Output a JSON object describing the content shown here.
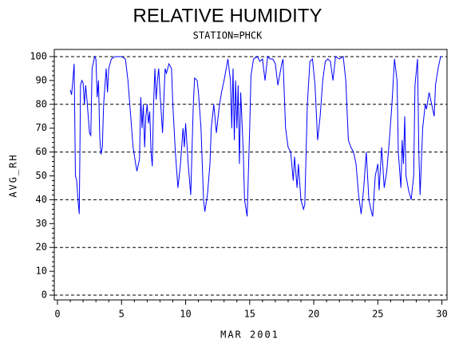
{
  "chart_data": {
    "type": "line",
    "title": "RELATIVE HUMIDITY",
    "subtitle": "STATION=PHCK",
    "xlabel": "MAR 2001",
    "ylabel": "AVG_RH",
    "xlim": [
      -0.25,
      30.4
    ],
    "ylim": [
      -2,
      103
    ],
    "xticks": [
      0,
      5,
      10,
      15,
      20,
      25,
      30
    ],
    "yticks": [
      0,
      10,
      20,
      30,
      40,
      50,
      60,
      70,
      80,
      90,
      100
    ],
    "xminorticks": [
      1,
      2,
      3,
      4,
      6,
      7,
      8,
      9,
      11,
      12,
      13,
      14,
      16,
      17,
      18,
      19,
      21,
      22,
      23,
      24,
      26,
      27,
      28,
      29
    ],
    "yminorticks": [
      2,
      4,
      6,
      8,
      12,
      14,
      16,
      18,
      22,
      24,
      26,
      28,
      32,
      34,
      36,
      38,
      42,
      44,
      46,
      48,
      52,
      54,
      56,
      58,
      62,
      64,
      66,
      68,
      72,
      74,
      76,
      78,
      82,
      84,
      86,
      88,
      92,
      94,
      96,
      98
    ],
    "reference_lines": [
      0,
      20,
      40,
      60,
      80,
      100
    ],
    "x": [
      1.0,
      1.1,
      1.2,
      1.3,
      1.4,
      1.5,
      1.6,
      1.7,
      1.8,
      1.9,
      2.0,
      2.1,
      2.2,
      2.3,
      2.5,
      2.6,
      2.7,
      2.9,
      3.0,
      3.1,
      3.2,
      3.3,
      3.4,
      3.5,
      3.6,
      3.8,
      3.9,
      4.0,
      4.2,
      4.5,
      5.0,
      5.3,
      5.5,
      5.7,
      5.9,
      6.1,
      6.2,
      6.4,
      6.5,
      6.6,
      6.7,
      6.8,
      6.9,
      7.0,
      7.1,
      7.2,
      7.3,
      7.4,
      7.5,
      7.6,
      7.7,
      7.8,
      7.9,
      8.0,
      8.2,
      8.3,
      8.4,
      8.5,
      8.7,
      8.9,
      9.0,
      9.2,
      9.4,
      9.6,
      9.8,
      9.9,
      10.0,
      10.2,
      10.4,
      10.6,
      10.7,
      10.9,
      11.0,
      11.2,
      11.4,
      11.5,
      11.7,
      11.9,
      12.0,
      12.2,
      12.4,
      12.6,
      12.8,
      13.0,
      13.3,
      13.5,
      13.6,
      13.7,
      13.8,
      13.9,
      14.0,
      14.1,
      14.2,
      14.3,
      14.5,
      14.6,
      14.8,
      15.0,
      15.1,
      15.3,
      15.6,
      15.8,
      16.0,
      16.2,
      16.4,
      16.6,
      16.8,
      17.0,
      17.2,
      17.5,
      17.6,
      17.8,
      18.0,
      18.2,
      18.4,
      18.5,
      18.7,
      18.8,
      19.0,
      19.2,
      19.3,
      19.5,
      19.7,
      19.9,
      20.1,
      20.3,
      20.5,
      20.7,
      20.9,
      21.1,
      21.3,
      21.5,
      21.7,
      22.0,
      22.3,
      22.5,
      22.7,
      22.9,
      23.1,
      23.3,
      23.5,
      23.7,
      23.9,
      24.1,
      24.3,
      24.5,
      24.6,
      24.8,
      25.0,
      25.1,
      25.3,
      25.5,
      25.7,
      25.9,
      26.1,
      26.3,
      26.5,
      26.6,
      26.8,
      26.9,
      27.0,
      27.1,
      27.2,
      27.4,
      27.6,
      27.8,
      27.9,
      28.1,
      28.2,
      28.3,
      28.5,
      28.7,
      28.8,
      29.0,
      29.2,
      29.4,
      29.5,
      29.7,
      29.9,
      30.0
    ],
    "series": [
      {
        "name": "AVG_RH",
        "color": "#0000ff",
        "values": [
          86,
          84,
          90,
          97,
          50,
          48,
          40,
          34,
          88,
          90,
          89,
          80,
          88,
          82,
          68,
          67,
          95,
          100,
          99,
          83,
          90,
          66,
          59,
          62,
          80,
          95,
          85,
          95,
          99,
          100,
          100,
          99,
          90,
          76,
          62,
          55,
          52,
          57,
          83,
          70,
          80,
          62,
          75,
          80,
          72,
          77,
          60,
          54,
          80,
          95,
          82,
          90,
          95,
          85,
          68,
          82,
          95,
          93,
          97,
          95,
          80,
          60,
          45,
          55,
          70,
          62,
          72,
          55,
          42,
          80,
          91,
          90,
          85,
          70,
          40,
          35,
          42,
          55,
          70,
          80,
          68,
          78,
          85,
          90,
          99,
          90,
          70,
          95,
          65,
          90,
          70,
          88,
          55,
          85,
          60,
          40,
          33,
          70,
          92,
          99,
          100,
          98,
          99,
          90,
          100,
          99,
          99,
          97,
          88,
          97,
          99,
          70,
          62,
          60,
          48,
          58,
          45,
          55,
          40,
          36,
          38,
          80,
          98,
          99,
          88,
          65,
          75,
          90,
          98,
          99,
          98,
          90,
          100,
          99,
          100,
          90,
          65,
          62,
          60,
          55,
          42,
          34,
          45,
          60,
          40,
          35,
          33,
          50,
          55,
          44,
          62,
          45,
          52,
          65,
          80,
          99,
          90,
          60,
          45,
          65,
          55,
          75,
          50,
          44,
          40,
          50,
          88,
          99,
          60,
          42,
          70,
          80,
          78,
          85,
          80,
          75,
          88,
          95,
          100,
          100
        ]
      }
    ]
  }
}
